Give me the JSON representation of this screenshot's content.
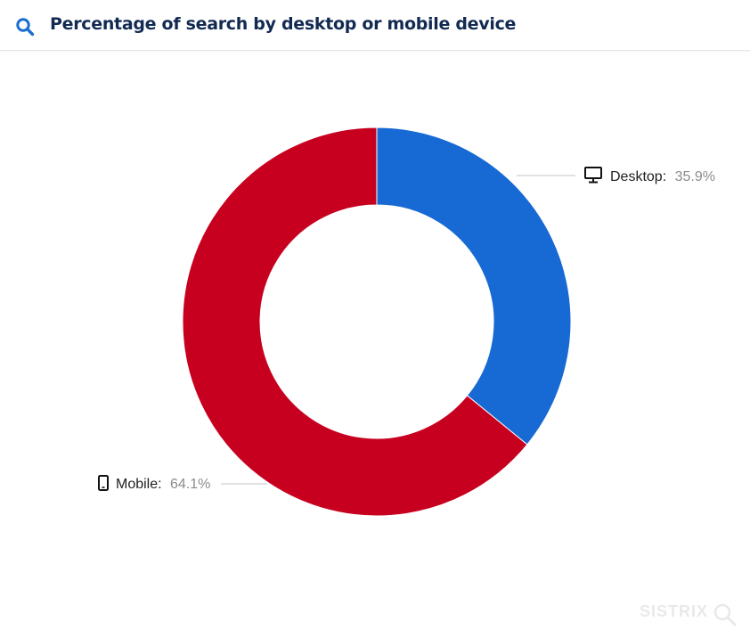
{
  "header": {
    "title": "Percentage of search by desktop or mobile device",
    "icon": "search-icon",
    "accent_color": "#1a6fd2"
  },
  "chart_data": {
    "type": "pie",
    "donut": true,
    "title": "Percentage of search by desktop or mobile device",
    "legend": "none",
    "slices": [
      {
        "label": "Desktop:",
        "value_label": "35.9%",
        "value": 35.9,
        "color": "#1769d4",
        "icon": "desktop-icon"
      },
      {
        "label": "Mobile:",
        "value_label": "64.1%",
        "value": 64.1,
        "color": "#c8001f",
        "icon": "mobile-icon"
      }
    ]
  },
  "watermark": {
    "text": "SISTRIX"
  }
}
